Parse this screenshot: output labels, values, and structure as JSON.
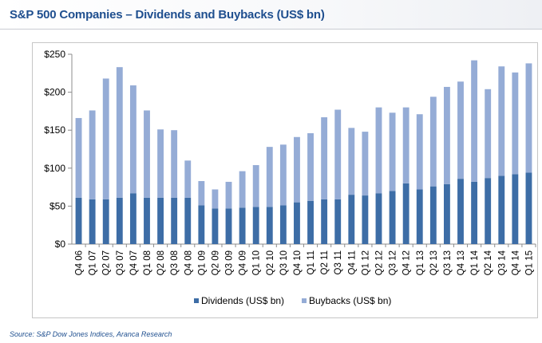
{
  "title": "S&P 500 Companies – Dividends and Buybacks (US$ bn)",
  "source": "Source: S&P Dow Jones Indices, Aranca Research",
  "chart_data": {
    "type": "bar",
    "stacked": true,
    "title": "S&P 500 Companies – Dividends and Buybacks (US$ bn)",
    "xlabel": "",
    "ylabel": "",
    "ylim": [
      0,
      250
    ],
    "yticks": [
      "$0",
      "$50",
      "$100",
      "$150",
      "$200",
      "$250"
    ],
    "ytick_values": [
      0,
      50,
      100,
      150,
      200,
      250
    ],
    "grid": false,
    "legend_position": "bottom",
    "categories": [
      "Q4 06",
      "Q1 07",
      "Q2 07",
      "Q3 07",
      "Q4 07",
      "Q1 08",
      "Q2 08",
      "Q3 08",
      "Q4 08",
      "Q1 09",
      "Q2 09",
      "Q3 09",
      "Q4 09",
      "Q1 10",
      "Q2 10",
      "Q3 10",
      "Q4 10",
      "Q1 11",
      "Q2 11",
      "Q3 11",
      "Q4 11",
      "Q1 12",
      "Q2 12",
      "Q3 12",
      "Q4 12",
      "Q1 13",
      "Q2 13",
      "Q3 13",
      "Q4 13",
      "Q1 14",
      "Q2 14",
      "Q3 14",
      "Q4 14",
      "Q1 15"
    ],
    "series": [
      {
        "name": "Dividends (US$ bn)",
        "color": "#3d6da6",
        "values": [
          61,
          59,
          59,
          61,
          67,
          61,
          61,
          61,
          61,
          51,
          47,
          47,
          48,
          49,
          49,
          51,
          55,
          57,
          59,
          59,
          65,
          64,
          67,
          70,
          80,
          72,
          76,
          79,
          86,
          82,
          87,
          90,
          92,
          94
        ]
      },
      {
        "name": "Buybacks (US$ bn)",
        "color": "#95acd6",
        "values": [
          105,
          117,
          159,
          172,
          142,
          115,
          90,
          89,
          49,
          32,
          25,
          35,
          48,
          55,
          79,
          80,
          86,
          89,
          108,
          118,
          88,
          84,
          113,
          103,
          100,
          99,
          118,
          128,
          128,
          160,
          117,
          144,
          134,
          144
        ]
      }
    ]
  }
}
